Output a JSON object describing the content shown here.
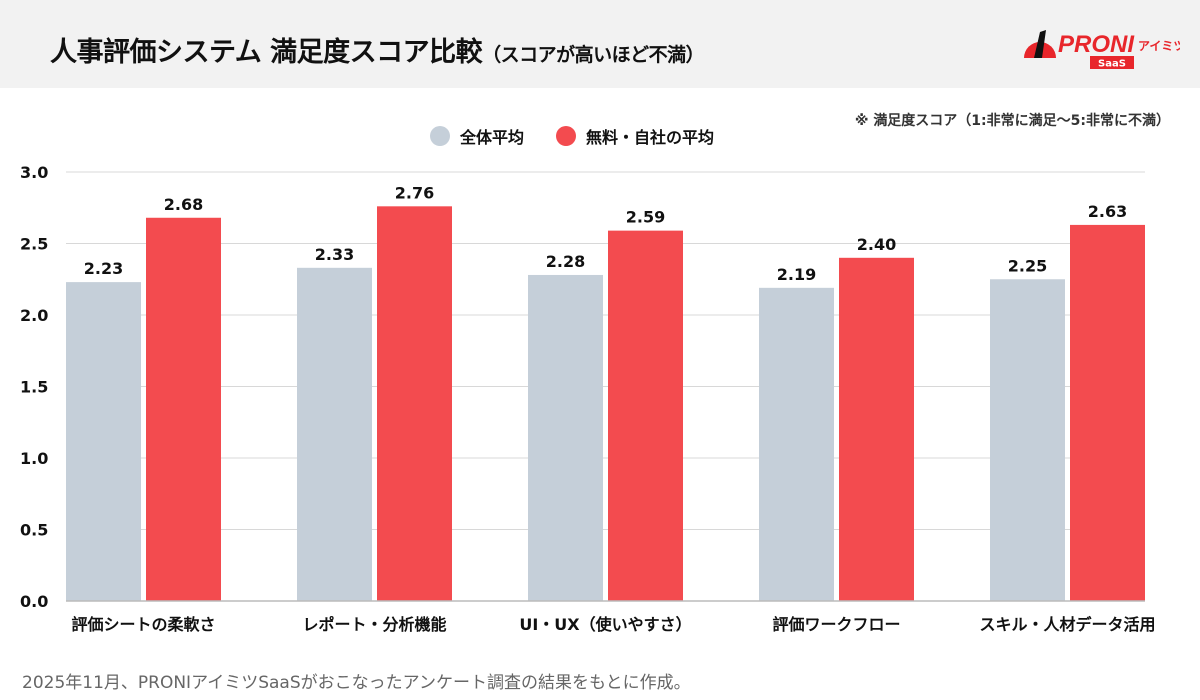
{
  "header": {
    "title": "人事評価システム 満足度スコア比較",
    "title_sub": "（スコアが高いほど不満）",
    "logo_text": "PRONIアイミツ SaaS"
  },
  "note": "※ 満足度スコア（1:非常に満足〜5:非常に不満）",
  "footer": "2025年11月、PRONIアイミツSaaSがおこなったアンケート調査の結果をもとに作成。",
  "chart_data": {
    "type": "bar",
    "categories": [
      "評価シートの柔軟さ",
      "レポート・分析機能",
      "UI・UX（使いやすさ）",
      "評価ワークフロー",
      "スキル・人材データ活用"
    ],
    "series": [
      {
        "name": "全体平均",
        "values": [
          2.23,
          2.33,
          2.28,
          2.19,
          2.25
        ],
        "color": "#c5cfd9"
      },
      {
        "name": "無料・自社の平均",
        "values": [
          2.68,
          2.76,
          2.59,
          2.4,
          2.63
        ],
        "color": "#f34b4f"
      }
    ],
    "ylim": [
      0,
      3.0
    ],
    "yticks": [
      "0.0",
      "0.5",
      "1.0",
      "1.5",
      "2.0",
      "2.5",
      "3.0"
    ],
    "grid": true,
    "legend": "top-center"
  }
}
